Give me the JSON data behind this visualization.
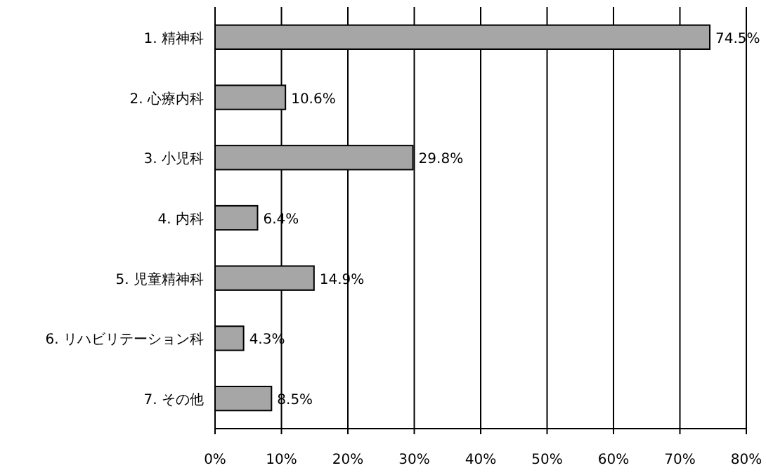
{
  "chart_data": {
    "type": "bar",
    "orientation": "horizontal",
    "categories": [
      "1. 精神科",
      "2. 心療内科",
      "3. 小児科",
      "4. 内科",
      "5. 児童精神科",
      "6. リハビリテーション科",
      "7. その他"
    ],
    "values": [
      74.5,
      10.6,
      29.8,
      6.4,
      14.9,
      4.3,
      8.5
    ],
    "value_labels": [
      "74.5%",
      "10.6%",
      "29.8%",
      "6.4%",
      "14.9%",
      "4.3%",
      "8.5%"
    ],
    "color": "#a6a6a6",
    "xlim": [
      0,
      80
    ],
    "xticks": [
      {
        "value": 0,
        "label": "0%"
      },
      {
        "value": 10,
        "label": "10%"
      },
      {
        "value": 20,
        "label": "20%"
      },
      {
        "value": 30,
        "label": "30%"
      },
      {
        "value": 40,
        "label": "40%"
      },
      {
        "value": 50,
        "label": "50%"
      },
      {
        "value": 60,
        "label": "60%"
      },
      {
        "value": 70,
        "label": "70%"
      },
      {
        "value": 80,
        "label": "80%"
      }
    ],
    "grid": "x"
  }
}
